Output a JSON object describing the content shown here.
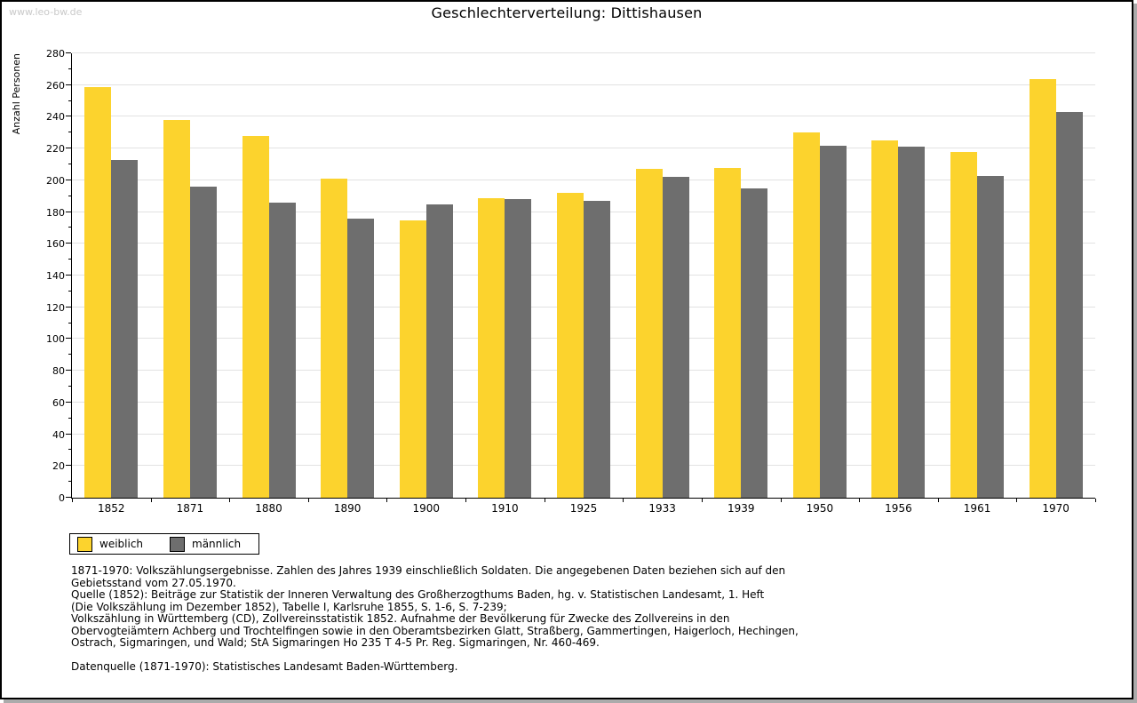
{
  "watermark": "www.leo-bw.de",
  "header": {
    "title": "Geschlechterverteilung: Dittishausen"
  },
  "chart_data": {
    "type": "bar",
    "title": "Geschlechterverteilung: Dittishausen",
    "xlabel": "",
    "ylabel": "Anzahl Personen",
    "ylim": [
      0,
      280
    ],
    "ytick_step": 20,
    "ytick_minor_step": 10,
    "grid": true,
    "legend_position": "bottom-left",
    "categories": [
      "1852",
      "1871",
      "1880",
      "1890",
      "1900",
      "1910",
      "1925",
      "1933",
      "1939",
      "1950",
      "1956",
      "1961",
      "1970"
    ],
    "series": [
      {
        "name": "weiblich",
        "color": "#fcd32d",
        "values": [
          259,
          238,
          228,
          201,
          175,
          189,
          192,
          207,
          208,
          230,
          225,
          218,
          264
        ]
      },
      {
        "name": "männlich",
        "color": "#6e6e6e",
        "values": [
          213,
          196,
          186,
          176,
          185,
          188,
          187,
          202,
          195,
          222,
          221,
          203,
          243
        ]
      }
    ]
  },
  "legend": {
    "items": [
      {
        "label": "weiblich",
        "color": "#fcd32d"
      },
      {
        "label": "männlich",
        "color": "#6e6e6e"
      }
    ]
  },
  "footnotes": {
    "lines": [
      "1871-1970: Volkszählungsergebnisse. Zahlen des Jahres 1939 einschließlich Soldaten. Die angegebenen Daten beziehen sich auf den",
      "Gebietsstand vom 27.05.1970.",
      "Quelle (1852): Beiträge zur Statistik der Inneren Verwaltung des Großherzogthums Baden, hg. v. Statistischen Landesamt, 1. Heft",
      "(Die Volkszählung im Dezember 1852), Tabelle I, Karlsruhe 1855, S. 1-6, S. 7-239;",
      "Volkszählung in Württemberg (CD), Zollvereinsstatistik 1852. Aufnahme der Bevölkerung für Zwecke des Zollvereins in den",
      "Obervogteiämtern Achberg und Trochtelfingen sowie in den Oberamtsbezirken Glatt, Straßberg, Gammertingen, Haigerloch, Hechingen,",
      "Ostrach, Sigmaringen, und Wald; StA Sigmaringen Ho 235 T 4-5 Pr. Reg. Sigmaringen, Nr. 460-469."
    ],
    "datasource": "Datenquelle (1871-1970): Statistisches Landesamt Baden-Württemberg."
  },
  "colors": {
    "bar_female": "#fcd32d",
    "bar_male": "#6e6e6e",
    "gridline": "#e2e2e2",
    "watermark": "#c9c9c9",
    "frame_shadow": "#ababab"
  }
}
